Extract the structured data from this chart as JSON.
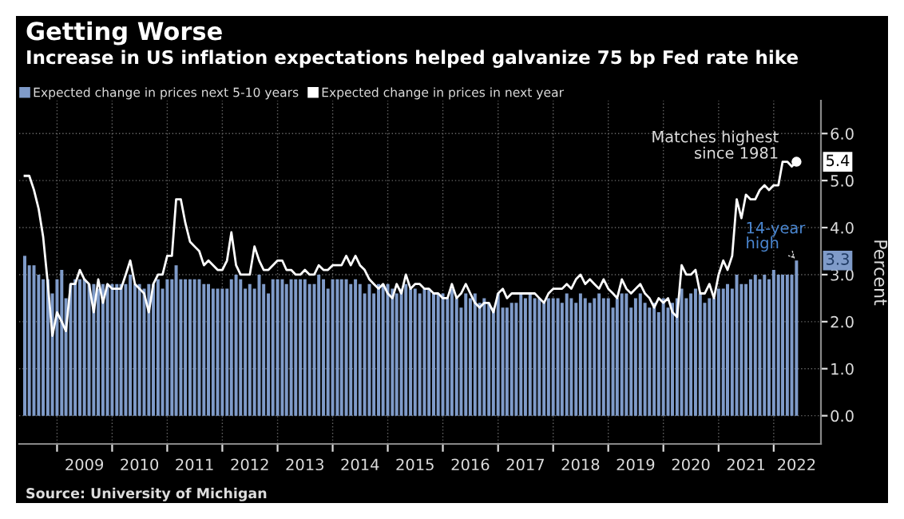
{
  "chart_data": {
    "type": "bar",
    "title": "Getting Worse",
    "subtitle": "Increase in US inflation expectations helped galvanize 75 bp Fed rate hike",
    "ylabel": "Percent",
    "x": [
      "2008-06",
      "2008-07",
      "2008-08",
      "2008-09",
      "2008-10",
      "2008-11",
      "2008-12",
      "2009-01",
      "2009-02",
      "2009-03",
      "2009-04",
      "2009-05",
      "2009-06",
      "2009-07",
      "2009-08",
      "2009-09",
      "2009-10",
      "2009-11",
      "2009-12",
      "2010-01",
      "2010-02",
      "2010-03",
      "2010-04",
      "2010-05",
      "2010-06",
      "2010-07",
      "2010-08",
      "2010-09",
      "2010-10",
      "2010-11",
      "2010-12",
      "2011-01",
      "2011-02",
      "2011-03",
      "2011-04",
      "2011-05",
      "2011-06",
      "2011-07",
      "2011-08",
      "2011-09",
      "2011-10",
      "2011-11",
      "2011-12",
      "2012-01",
      "2012-02",
      "2012-03",
      "2012-04",
      "2012-05",
      "2012-06",
      "2012-07",
      "2012-08",
      "2012-09",
      "2012-10",
      "2012-11",
      "2012-12",
      "2013-01",
      "2013-02",
      "2013-03",
      "2013-04",
      "2013-05",
      "2013-06",
      "2013-07",
      "2013-08",
      "2013-09",
      "2013-10",
      "2013-11",
      "2013-12",
      "2014-01",
      "2014-02",
      "2014-03",
      "2014-04",
      "2014-05",
      "2014-06",
      "2014-07",
      "2014-08",
      "2014-09",
      "2014-10",
      "2014-11",
      "2014-12",
      "2015-01",
      "2015-02",
      "2015-03",
      "2015-04",
      "2015-05",
      "2015-06",
      "2015-07",
      "2015-08",
      "2015-09",
      "2015-10",
      "2015-11",
      "2015-12",
      "2016-01",
      "2016-02",
      "2016-03",
      "2016-04",
      "2016-05",
      "2016-06",
      "2016-07",
      "2016-08",
      "2016-09",
      "2016-10",
      "2016-11",
      "2016-12",
      "2017-01",
      "2017-02",
      "2017-03",
      "2017-04",
      "2017-05",
      "2017-06",
      "2017-07",
      "2017-08",
      "2017-09",
      "2017-10",
      "2017-11",
      "2017-12",
      "2018-01",
      "2018-02",
      "2018-03",
      "2018-04",
      "2018-05",
      "2018-06",
      "2018-07",
      "2018-08",
      "2018-09",
      "2018-10",
      "2018-11",
      "2018-12",
      "2019-01",
      "2019-02",
      "2019-03",
      "2019-04",
      "2019-05",
      "2019-06",
      "2019-07",
      "2019-08",
      "2019-09",
      "2019-10",
      "2019-11",
      "2019-12",
      "2020-01",
      "2020-02",
      "2020-03",
      "2020-04",
      "2020-05",
      "2020-06",
      "2020-07",
      "2020-08",
      "2020-09",
      "2020-10",
      "2020-11",
      "2020-12",
      "2021-01",
      "2021-02",
      "2021-03",
      "2021-04",
      "2021-05",
      "2021-06",
      "2021-07",
      "2021-08",
      "2021-09",
      "2021-10",
      "2021-11",
      "2021-12",
      "2022-01",
      "2022-02",
      "2022-03",
      "2022-04",
      "2022-05",
      "2022-06"
    ],
    "series": [
      {
        "name": "Expected change in prices next 5-10 years",
        "color": "#7f9bc9",
        "values": [
          3.4,
          3.2,
          3.2,
          3.0,
          2.9,
          2.9,
          2.6,
          2.9,
          3.1,
          2.5,
          2.8,
          2.9,
          2.9,
          2.9,
          2.8,
          2.8,
          2.7,
          2.8,
          2.8,
          2.8,
          2.8,
          2.8,
          2.8,
          3.0,
          2.8,
          2.8,
          2.7,
          2.8,
          2.8,
          2.9,
          2.7,
          2.9,
          2.9,
          3.2,
          2.9,
          2.9,
          2.9,
          2.9,
          2.9,
          2.8,
          2.8,
          2.7,
          2.7,
          2.7,
          2.7,
          2.9,
          3.0,
          2.9,
          2.7,
          2.8,
          2.7,
          3.0,
          2.8,
          2.6,
          2.9,
          2.9,
          2.9,
          2.8,
          2.9,
          2.9,
          2.9,
          2.9,
          2.8,
          2.8,
          3.0,
          2.9,
          2.7,
          2.9,
          2.9,
          2.9,
          2.9,
          2.8,
          2.9,
          2.8,
          2.6,
          2.8,
          2.6,
          2.8,
          2.8,
          2.8,
          2.7,
          2.6,
          2.7,
          2.8,
          2.7,
          2.7,
          2.6,
          2.7,
          2.7,
          2.6,
          2.6,
          2.6,
          2.5,
          2.7,
          2.5,
          2.3,
          2.6,
          2.5,
          2.6,
          2.4,
          2.5,
          2.4,
          2.3,
          2.6,
          2.3,
          2.3,
          2.4,
          2.4,
          2.6,
          2.5,
          2.6,
          2.5,
          2.5,
          2.4,
          2.5,
          2.5,
          2.5,
          2.4,
          2.6,
          2.5,
          2.4,
          2.6,
          2.5,
          2.4,
          2.5,
          2.6,
          2.5,
          2.5,
          2.3,
          2.5,
          2.6,
          2.6,
          2.3,
          2.5,
          2.6,
          2.4,
          2.3,
          2.4,
          2.2,
          2.5,
          2.3,
          2.4,
          2.5,
          2.7,
          2.5,
          2.6,
          2.7,
          2.6,
          2.4,
          2.5,
          2.5,
          2.7,
          2.7,
          2.8,
          2.7,
          3.0,
          2.8,
          2.8,
          2.9,
          3.0,
          2.9,
          3.0,
          2.9,
          3.1,
          3.0,
          3.0,
          3.0,
          3.0,
          3.3
        ]
      },
      {
        "name": "Expected change in prices in next year",
        "type": "line",
        "color": "#ffffff",
        "values": [
          5.1,
          5.1,
          4.8,
          4.4,
          3.8,
          2.8,
          1.7,
          2.2,
          2.0,
          1.8,
          2.8,
          2.8,
          3.1,
          2.9,
          2.8,
          2.2,
          2.9,
          2.4,
          2.8,
          2.7,
          2.7,
          2.7,
          3.0,
          3.3,
          2.8,
          2.7,
          2.6,
          2.2,
          2.8,
          3.0,
          3.0,
          3.4,
          3.4,
          4.6,
          4.6,
          4.1,
          3.7,
          3.6,
          3.5,
          3.2,
          3.3,
          3.2,
          3.1,
          3.1,
          3.3,
          3.9,
          3.2,
          3.0,
          3.0,
          3.0,
          3.6,
          3.3,
          3.1,
          3.1,
          3.2,
          3.3,
          3.3,
          3.1,
          3.1,
          3.0,
          3.0,
          3.1,
          3.0,
          3.0,
          3.2,
          3.1,
          3.1,
          3.2,
          3.2,
          3.2,
          3.4,
          3.2,
          3.4,
          3.2,
          3.1,
          2.9,
          2.8,
          2.7,
          2.8,
          2.6,
          2.5,
          2.8,
          2.6,
          3.0,
          2.7,
          2.8,
          2.8,
          2.7,
          2.7,
          2.6,
          2.6,
          2.5,
          2.5,
          2.8,
          2.5,
          2.6,
          2.8,
          2.6,
          2.4,
          2.3,
          2.4,
          2.4,
          2.2,
          2.6,
          2.7,
          2.5,
          2.6,
          2.6,
          2.6,
          2.6,
          2.6,
          2.6,
          2.5,
          2.4,
          2.6,
          2.7,
          2.7,
          2.7,
          2.8,
          2.7,
          2.9,
          3.0,
          2.8,
          2.9,
          2.8,
          2.7,
          2.9,
          2.7,
          2.6,
          2.5,
          2.9,
          2.7,
          2.6,
          2.7,
          2.8,
          2.6,
          2.5,
          2.3,
          2.5,
          2.4,
          2.5,
          2.2,
          2.1,
          3.2,
          3.0,
          3.0,
          3.1,
          2.6,
          2.6,
          2.8,
          2.5,
          3.0,
          3.3,
          3.1,
          3.4,
          4.6,
          4.2,
          4.7,
          4.6,
          4.6,
          4.8,
          4.9,
          4.8,
          4.9,
          4.9,
          5.4,
          5.4,
          5.3,
          5.4
        ]
      }
    ],
    "xlim": [
      "2008-04-25",
      "2022-11-10"
    ],
    "xticks": [
      {
        "value": "2009-01-01",
        "label": null
      },
      {
        "value": "2010-01-01",
        "label": null
      },
      {
        "value": "2011-01-01",
        "label": null
      },
      {
        "value": "2012-01-01",
        "label": null
      },
      {
        "value": "2013-01-01",
        "label": null
      },
      {
        "value": "2014-01-01",
        "label": null
      },
      {
        "value": "2015-01-01",
        "label": null
      },
      {
        "value": "2016-01-01",
        "label": null
      },
      {
        "value": "2017-01-01",
        "label": null
      },
      {
        "value": "2018-01-01",
        "label": null
      },
      {
        "value": "2019-01-01",
        "label": null
      },
      {
        "value": "2020-01-01",
        "label": null
      },
      {
        "value": "2021-01-01",
        "label": null
      },
      {
        "value": "2022-01-01",
        "label": null
      },
      {
        "value": "2009-07-01",
        "label": "2009"
      },
      {
        "value": "2010-07-01",
        "label": "2010"
      },
      {
        "value": "2011-07-01",
        "label": "2011"
      },
      {
        "value": "2012-07-01",
        "label": "2012"
      },
      {
        "value": "2013-07-01",
        "label": "2013"
      },
      {
        "value": "2014-07-01",
        "label": "2014"
      },
      {
        "value": "2015-07-01",
        "label": "2015"
      },
      {
        "value": "2016-07-01",
        "label": "2016"
      },
      {
        "value": "2017-07-01",
        "label": "2017"
      },
      {
        "value": "2018-07-01",
        "label": "2018"
      },
      {
        "value": "2019-07-01",
        "label": "2019"
      },
      {
        "value": "2020-07-01",
        "label": "2020"
      },
      {
        "value": "2021-07-01",
        "label": "2021"
      },
      {
        "value": "2022-06-01",
        "label": "2022"
      }
    ],
    "ylim": [
      -0.6,
      6.7
    ],
    "yticks": [
      {
        "value": 0,
        "label": "0.0"
      },
      {
        "value": 1,
        "label": "1.0"
      },
      {
        "value": 2,
        "label": "2.0"
      },
      {
        "value": 3,
        "label": "3.0"
      },
      {
        "value": 4,
        "label": "4.0"
      },
      {
        "value": 5,
        "label": "5.0"
      },
      {
        "value": 6,
        "label": "6.0"
      }
    ],
    "grid": true,
    "legend": "top left",
    "annotations": [
      {
        "text": "Matches highest\nsince 1981",
        "x": "2022-06",
        "y": 5.4
      },
      {
        "text": "14-year\nhigh",
        "x": "2022-06",
        "y": 3.3
      },
      {
        "text": "5.4",
        "x": "2022-06",
        "y": 5.4
      },
      {
        "text": "3.3",
        "x": "2022-06",
        "y": 3.3
      },
      "Source: University of Michigan"
    ]
  }
}
